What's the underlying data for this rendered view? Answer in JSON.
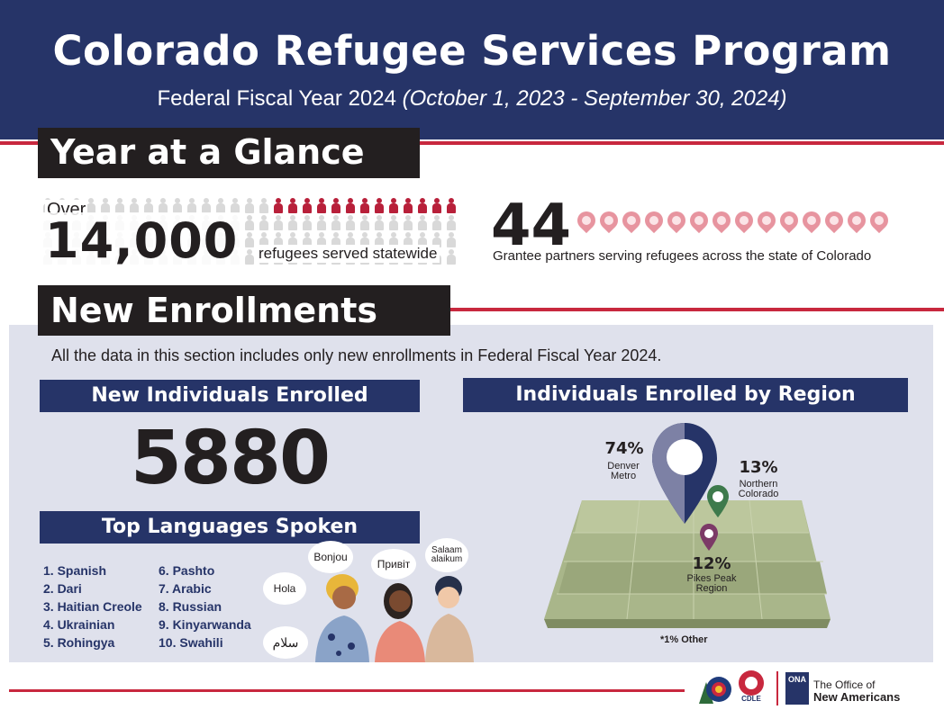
{
  "header": {
    "title": "Colorado Refugee Services Program",
    "subtitle_plain": "Federal Fiscal Year 2024 ",
    "subtitle_italic": "(October 1, 2023 - September 30, 2024)"
  },
  "glance": {
    "section_title": "Year at a Glance",
    "over_label": "Over",
    "served_number": "14,000",
    "served_caption": "refugees served statewide",
    "partners_number": "44",
    "partners_caption": "Grantee partners serving refugees across the state of Colorado"
  },
  "enrollments": {
    "section_title": "New Enrollments",
    "note": "All the data in this section includes only new enrollments in Federal Fiscal Year 2024.",
    "individuals_title": "New Individuals Enrolled",
    "individuals_value": "5880",
    "languages_title": "Top Languages Spoken",
    "languages_col1": [
      "1. Spanish",
      "2. Dari",
      "3. Haitian Creole",
      "4. Ukrainian",
      "5. Rohingya"
    ],
    "languages_col2": [
      "6. Pashto",
      "7. Arabic",
      "8. Russian",
      "9. Kinyarwanda",
      "10. Swahili"
    ],
    "greetings": {
      "bonjou": "Bonjou",
      "pryvit": "Привіт",
      "salaam": "Salaam alaikum",
      "hola": "Hola",
      "arabic": "سلام"
    },
    "region_title": "Individuals Enrolled by Region",
    "regions": [
      {
        "pct": "74%",
        "name": "Denver Metro",
        "color": "#263468"
      },
      {
        "pct": "13%",
        "name": "Northern Colorado",
        "color": "#3e7a4c"
      },
      {
        "pct": "12%",
        "name": "Pikes Peak Region",
        "color": "#7c3a67"
      }
    ],
    "other_note": "*1% Other"
  },
  "footer": {
    "logo_co": "CDLE",
    "ona_letters": "ONA",
    "ona_line1": "The Office of",
    "ona_line2": "New Americans"
  },
  "colors": {
    "navy": "#263468",
    "red": "#c8283e",
    "panel": "#dfe1ec"
  }
}
